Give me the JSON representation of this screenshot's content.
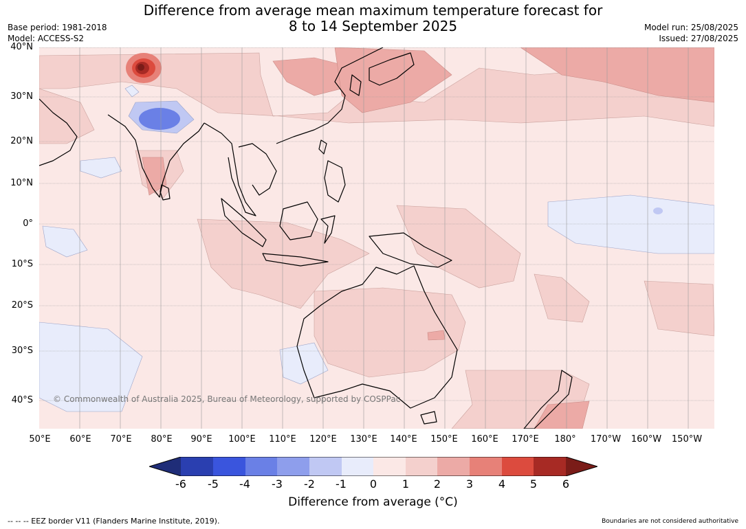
{
  "title": {
    "line1": "Difference from average mean maximum temperature forecast for",
    "line2": "8 to 14 September 2025"
  },
  "meta_left": {
    "base_period": "Base period: 1981-2018",
    "model": "Model: ACCESS-S2"
  },
  "meta_right": {
    "model_run": "Model run: 25/08/2025",
    "issued": "Issued: 27/08/2025"
  },
  "map": {
    "copyright": "© Commonwealth of Australia 2025, Bureau of Meteorology, supported by COSPPac",
    "lon_range": [
      50,
      216
    ],
    "lat_range": [
      -46,
      40
    ],
    "lat_labels": [
      "40°N",
      "30°N",
      "20°N",
      "10°N",
      "0°",
      "10°S",
      "20°S",
      "30°S",
      "40°S"
    ],
    "lon_labels": [
      "50°E",
      "60°E",
      "70°E",
      "80°E",
      "90°E",
      "100°E",
      "110°E",
      "120°E",
      "130°E",
      "140°E",
      "150°E",
      "160°E",
      "170°E",
      "180°",
      "170°W",
      "160°W",
      "150°W"
    ],
    "background_color": "#fbe8e6"
  },
  "legend": {
    "ticks": [
      "-6",
      "-5",
      "-4",
      "-3",
      "-2",
      "-1",
      "0",
      "1",
      "2",
      "3",
      "4",
      "5",
      "6"
    ],
    "colors": [
      "#1f2d78",
      "#2a3fb0",
      "#3a55dd",
      "#6a80e6",
      "#8e9eec",
      "#c0c8f3",
      "#e8ecfb",
      "#fbe8e6",
      "#f4d0cd",
      "#ecaaa6",
      "#e78178",
      "#dc4b3e",
      "#a72a24",
      "#7a1c18"
    ],
    "label": "Difference from average (°C)"
  },
  "footer": {
    "eez": "--  --  -- EEZ border V11 (Flanders Marine Institute, 2019).",
    "boundaries": "Boundaries are not considered authoritative"
  }
}
